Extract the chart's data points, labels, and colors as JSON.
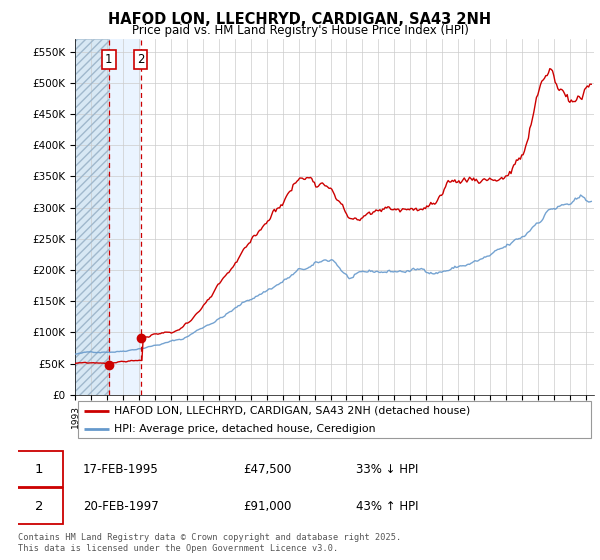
{
  "title": "HAFOD LON, LLECHRYD, CARDIGAN, SA43 2NH",
  "subtitle": "Price paid vs. HM Land Registry's House Price Index (HPI)",
  "ylabel_ticks": [
    "£0",
    "£50K",
    "£100K",
    "£150K",
    "£200K",
    "£250K",
    "£300K",
    "£350K",
    "£400K",
    "£450K",
    "£500K",
    "£550K"
  ],
  "ytick_values": [
    0,
    50000,
    100000,
    150000,
    200000,
    250000,
    300000,
    350000,
    400000,
    450000,
    500000,
    550000
  ],
  "ylim": [
    0,
    570000
  ],
  "xlim_start": 1993.0,
  "xlim_end": 2025.5,
  "sale1_x": 1995.12,
  "sale1_y": 47500,
  "sale2_x": 1997.12,
  "sale2_y": 91000,
  "legend_line1": "HAFOD LON, LLECHRYD, CARDIGAN, SA43 2NH (detached house)",
  "legend_line2": "HPI: Average price, detached house, Ceredigion",
  "annotation1_date": "17-FEB-1995",
  "annotation1_price": "£47,500",
  "annotation1_hpi": "33% ↓ HPI",
  "annotation2_date": "20-FEB-1997",
  "annotation2_price": "£91,000",
  "annotation2_hpi": "43% ↑ HPI",
  "footer": "Contains HM Land Registry data © Crown copyright and database right 2025.\nThis data is licensed under the Open Government Licence v3.0.",
  "red_color": "#cc0000",
  "blue_color": "#6699cc",
  "light_blue_fill": "#ddeeff",
  "grid_color": "#cccccc",
  "hatch_color": "#b0c8e0"
}
